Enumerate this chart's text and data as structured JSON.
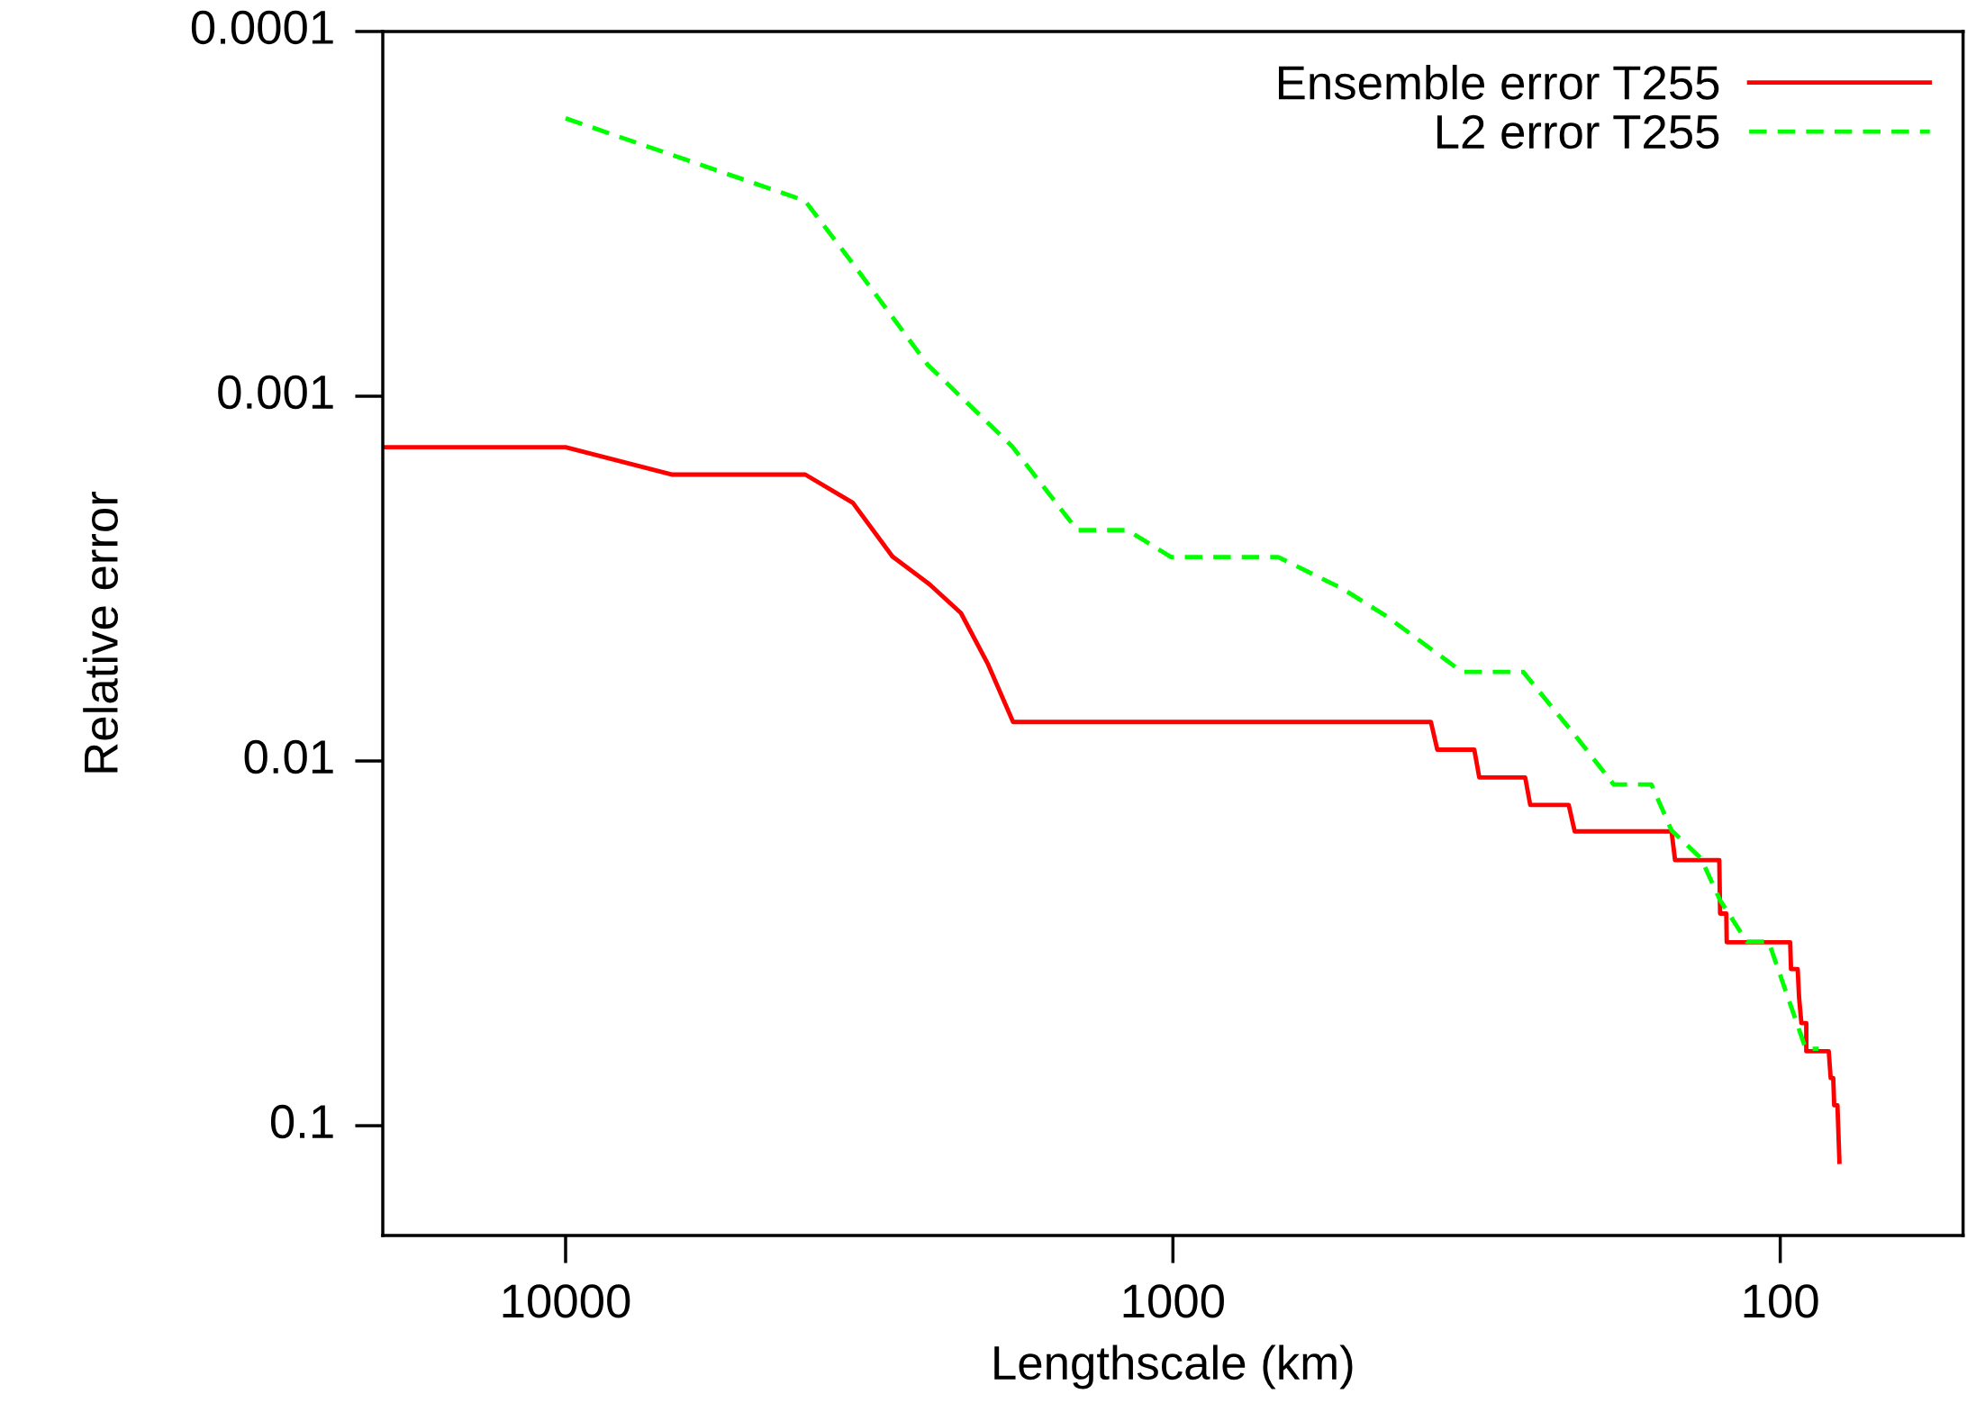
{
  "chart_data": {
    "type": "line",
    "xlabel": "Lengthscale (km)",
    "ylabel": "Relative error",
    "log": "xy",
    "xlim": [
      20000,
      50
    ],
    "ylim": [
      0.2,
      0.0001
    ],
    "xticks": [
      10000,
      1000,
      100
    ],
    "yticks": [
      0.0001,
      0.001,
      0.01,
      0.1
    ],
    "grid": false,
    "legend": "top right",
    "marker": "none",
    "series": [
      {
        "name": "Ensemble error T255",
        "color": "#ff0000",
        "line_style": "solid",
        "x": [
          20000,
          10000,
          6670,
          4030,
          3365,
          2896,
          2515,
          2234,
          2015,
          1833,
          376,
          367,
          319,
          313,
          263,
          258,
          223,
          218,
          151,
          149,
          126,
          125.6,
          122.7,
          122.5,
          96.3,
          96,
          93.6,
          93.1,
          92.3,
          90.6,
          90.6,
          83.2,
          82.6,
          81.8,
          81.5,
          80.5,
          79.9
        ],
        "values": [
          0.00138,
          0.00138,
          0.00164,
          0.00164,
          0.00196,
          0.00275,
          0.00328,
          0.00393,
          0.00544,
          0.00782,
          0.00782,
          0.00931,
          0.00931,
          0.0111,
          0.0111,
          0.0132,
          0.0132,
          0.0156,
          0.0156,
          0.0187,
          0.0187,
          0.0262,
          0.0262,
          0.0314,
          0.0314,
          0.0372,
          0.0372,
          0.0446,
          0.0523,
          0.0523,
          0.0625,
          0.0625,
          0.074,
          0.074,
          0.0879,
          0.0879,
          0.1256
        ]
      },
      {
        "name": "L2 error T255",
        "color": "#00ff00",
        "line_style": "dashed",
        "x": [
          10000,
          4035,
          3337,
          2535,
          1841,
          1437,
          1188,
          1007,
          671,
          526,
          445,
          334,
          265,
          219,
          188,
          163,
          151,
          135,
          125.6,
          113.5,
          104.5,
          90.8,
          86.5
        ],
        "values": [
          0.000173,
          0.000291,
          0.000441,
          0.000819,
          0.00137,
          0.00233,
          0.00233,
          0.00276,
          0.00276,
          0.00337,
          0.00401,
          0.0057,
          0.0057,
          0.0084,
          0.0116,
          0.0116,
          0.0155,
          0.0185,
          0.0241,
          0.0313,
          0.0313,
          0.0615,
          0.0615
        ]
      }
    ]
  }
}
